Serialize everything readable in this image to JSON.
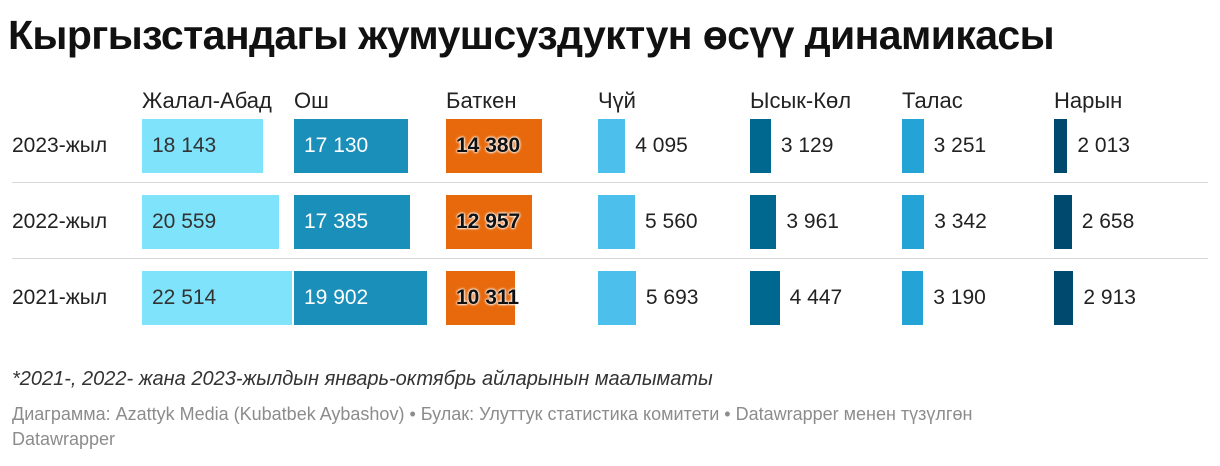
{
  "title": "Кыргызстандагы жумушсуздуктун өсүү динамикасы",
  "chart_data": {
    "type": "bar",
    "columns": [
      "Жалал-Абад",
      "Ош",
      "Баткен",
      "Чүй",
      "Ысык-Көл",
      "Талас",
      "Нарын"
    ],
    "rows": [
      "2023-жыл",
      "2022-жыл",
      "2021-жыл"
    ],
    "values": [
      [
        18143,
        17130,
        14380,
        4095,
        3129,
        3251,
        2013
      ],
      [
        20559,
        17385,
        12957,
        5560,
        3961,
        3342,
        2658
      ],
      [
        22514,
        19902,
        10311,
        5693,
        4447,
        3190,
        2913
      ]
    ],
    "value_labels": [
      [
        "18 143",
        "17 130",
        "14 380",
        "4 095",
        "3 129",
        "3 251",
        "2 013"
      ],
      [
        "20 559",
        "17 385",
        "12 957",
        "5 560",
        "3 961",
        "3 342",
        "2 658"
      ],
      [
        "22 514",
        "19 902",
        "10 311",
        "5 693",
        "4 447",
        "3 190",
        "2 913"
      ]
    ],
    "colors": [
      "#7ee3fb",
      "#1a8fba",
      "#e8690b",
      "#4dbfec",
      "#00688e",
      "#23a3d6",
      "#00496e"
    ]
  },
  "note": "*2021-, 2022- жана 2023-жылдын январь-октябрь айларынын маалыматы",
  "footer": {
    "credit": "Диаграмма: Azattyk Media (Kubatbek Aybashov)",
    "source": "• Булак: Улуттук статистика комитети",
    "tool": "• Datawrapper менен түзүлгөн",
    "brand": "Datawrapper"
  }
}
